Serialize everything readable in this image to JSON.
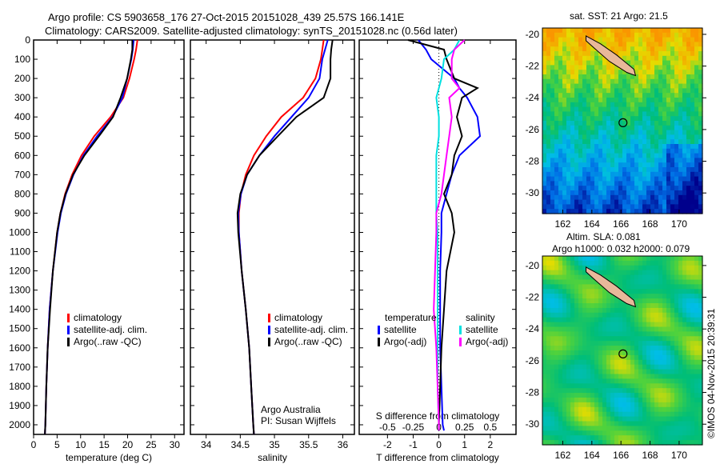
{
  "chart_data": {
    "title": "Argo profile: CS 5903658_176 27-Oct-2015 20151028_439 25.57S 166.141E",
    "subtitle": "Climatology: CARS2009. Satellite-adjusted climatology: synTS_20151028.nc (0.56d later)",
    "depth_axis": {
      "range": [
        0,
        2050
      ],
      "ticks": [
        0,
        100,
        200,
        300,
        400,
        500,
        600,
        700,
        800,
        900,
        1000,
        1100,
        1200,
        1300,
        1400,
        1500,
        1600,
        1700,
        1800,
        1900,
        2000
      ]
    },
    "panels": [
      {
        "type": "line",
        "xlabel": "temperature (deg C)",
        "xlim": [
          0,
          32
        ],
        "xticks": [
          0,
          5,
          10,
          15,
          20,
          25,
          30
        ],
        "legend": [
          "climatology",
          "satellite-adj. clim.",
          "Argo(..raw -QC)"
        ],
        "depth": [
          0,
          50,
          100,
          200,
          300,
          400,
          500,
          600,
          700,
          800,
          900,
          1000,
          1200,
          1400,
          1600,
          1800,
          2000,
          2050
        ],
        "series": [
          {
            "name": "climatology",
            "color": "#ff0000",
            "values": [
              22.1,
              21.8,
              21.4,
              20.4,
              19.1,
              16.4,
              12.9,
              10.2,
              8.2,
              6.7,
              5.7,
              5.0,
              4.1,
              3.4,
              3.0,
              2.7,
              2.5,
              2.4
            ]
          },
          {
            "name": "satellite-adj. clim.",
            "color": "#0000ff",
            "values": [
              21.3,
              21.1,
              20.8,
              19.9,
              18.9,
              16.8,
              13.5,
              10.6,
              8.5,
              6.9,
              5.8,
              5.1,
              4.1,
              3.4,
              3.0,
              2.7,
              2.5,
              2.4
            ]
          },
          {
            "name": "Argo(..raw -QC)",
            "color": "#000000",
            "values": [
              21.0,
              21.0,
              20.7,
              19.9,
              18.5,
              16.9,
              13.9,
              10.8,
              8.4,
              6.8,
              5.7,
              5.0,
              4.1,
              3.5,
              3.0,
              2.7,
              2.5,
              2.4
            ]
          }
        ]
      },
      {
        "type": "line",
        "xlabel": "salinity",
        "xlim": [
          33.77,
          36.17
        ],
        "xticks": [
          34,
          34.5,
          35,
          35.5,
          36
        ],
        "legend": [
          "climatology",
          "satellite-adj. clim.",
          "Argo(..raw -QC)"
        ],
        "annotation": [
          "Argo Australia",
          "PI: Susan Wijffels"
        ],
        "depth": [
          0,
          50,
          100,
          200,
          300,
          400,
          500,
          600,
          700,
          800,
          900,
          1000,
          1200,
          1400,
          1600,
          1800,
          2000,
          2050
        ],
        "series": [
          {
            "name": "climatology",
            "color": "#ff0000",
            "values": [
              35.72,
              35.7,
              35.68,
              35.6,
              35.42,
              35.1,
              34.88,
              34.7,
              34.58,
              34.51,
              34.48,
              34.48,
              34.52,
              34.58,
              34.63,
              34.66,
              34.69,
              34.7
            ]
          },
          {
            "name": "satellite-adj. clim.",
            "color": "#0000ff",
            "values": [
              35.78,
              35.74,
              35.7,
              35.66,
              35.5,
              35.25,
              35.0,
              34.78,
              34.6,
              34.51,
              34.47,
              34.48,
              34.52,
              34.58,
              34.63,
              34.66,
              34.69,
              34.7
            ]
          },
          {
            "name": "Argo(..raw -QC)",
            "color": "#000000",
            "values": [
              35.85,
              35.83,
              35.82,
              35.82,
              35.72,
              35.32,
              35.05,
              34.78,
              34.6,
              34.5,
              34.46,
              34.47,
              34.52,
              34.58,
              34.63,
              34.66,
              34.69,
              34.7
            ]
          }
        ]
      },
      {
        "type": "line",
        "xlabel": "T difference from climatology",
        "xlim": [
          -3.1,
          3.0
        ],
        "xticks": [
          -2,
          -1,
          0,
          1,
          2
        ],
        "xlabel2": "S difference from climatology",
        "xticks2": [
          "-0.5",
          "-0.25",
          "0",
          "0.25",
          "0.5"
        ],
        "legend_headers": [
          "temperature",
          "salinity"
        ],
        "legend": [
          "satellite",
          "Argo(-adj)",
          "satellite",
          "Argo(-adj)"
        ],
        "depth": [
          0,
          50,
          100,
          200,
          250,
          300,
          400,
          500,
          600,
          700,
          800,
          900,
          1000,
          1200,
          1400,
          1600,
          1800,
          2000,
          2030
        ],
        "series": [
          {
            "name": "temperature satellite",
            "color": "#0000ff",
            "values": [
              -0.8,
              -0.5,
              -0.3,
              0.6,
              0.8,
              1.1,
              1.5,
              1.6,
              0.8,
              0.5,
              0.3,
              0.1,
              0.1,
              0.05,
              0.05,
              0.05,
              0.1,
              0.15,
              0.2
            ]
          },
          {
            "name": "temperature Argo(-adj)",
            "color": "#000000",
            "values": [
              -1.2,
              0.2,
              0.3,
              0.6,
              1.5,
              0.9,
              0.7,
              0.9,
              0.6,
              0.5,
              0.2,
              0.5,
              0.6,
              0.3,
              0.2,
              0.1,
              0.05,
              0.0,
              0.0
            ]
          },
          {
            "name": "salinity satellite",
            "color": "#00e0e0",
            "values": [
              0.8,
              0.6,
              0.2,
              0.1,
              0.0,
              -0.1,
              0.0,
              0.0,
              -0.1,
              -0.1,
              -0.1,
              -0.1,
              -0.05,
              -0.05,
              -0.05,
              -0.05,
              -0.05,
              0.0,
              0.0
            ]
          },
          {
            "name": "salinity Argo(-adj)",
            "color": "#ff00ff",
            "values": [
              1.0,
              0.6,
              0.5,
              0.5,
              0.8,
              0.4,
              0.5,
              0.4,
              0.3,
              0.2,
              0.1,
              -0.1,
              -0.1,
              -0.15,
              -0.2,
              -0.1,
              -0.05,
              0.0,
              0.0
            ]
          }
        ]
      }
    ],
    "maps": [
      {
        "type": "heatmap",
        "title": "sat. SST: 21 Argo: 21.5",
        "lon_ticks": [
          162,
          164,
          166,
          168,
          170
        ],
        "lat_ticks": [
          -20,
          -22,
          -24,
          -26,
          -28,
          -30
        ],
        "lon_range": [
          160.6,
          171.6
        ],
        "lat_range": [
          -31.3,
          -19.6
        ],
        "argo_lon": 166.141,
        "argo_lat": -25.57
      },
      {
        "type": "heatmap",
        "title": [
          "Altim. SLA: 0.081",
          "Argo h1000: 0.032 h2000: 0.079"
        ],
        "lon_ticks": [
          162,
          164,
          166,
          168,
          170
        ],
        "lat_ticks": [
          -20,
          -22,
          -24,
          -26,
          -28,
          -30
        ],
        "lon_range": [
          160.6,
          171.6
        ],
        "lat_range": [
          -31.3,
          -19.4
        ],
        "argo_lon": 166.141,
        "argo_lat": -25.57
      }
    ],
    "side_label": "©IMOS 04-Nov-2015 20:39:31"
  }
}
